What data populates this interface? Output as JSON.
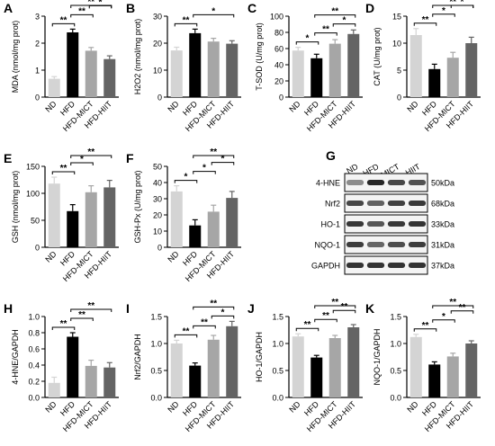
{
  "colors": {
    "ND": "#d4d4d4",
    "HFD": "#000000",
    "HFD-MICT": "#a6a6a6",
    "HFD-HIIT": "#646464",
    "ink": "#000000"
  },
  "blot": {
    "panel": "G",
    "groups": [
      "ND",
      "HFD",
      "HFD-MICT",
      "HFD-HIIT"
    ],
    "bands": [
      {
        "protein": "4-HNE",
        "size": "50kDa",
        "intensity": [
          0.45,
          0.85,
          0.72,
          0.68
        ]
      },
      {
        "protein": "Nrf2",
        "size": "68kDa",
        "intensity": [
          0.72,
          0.62,
          0.75,
          0.78
        ]
      },
      {
        "protein": "HO-1",
        "size": "33kDa",
        "intensity": [
          0.78,
          0.66,
          0.78,
          0.8
        ]
      },
      {
        "protein": "NQO-1",
        "size": "31kDa",
        "intensity": [
          0.76,
          0.6,
          0.7,
          0.76
        ]
      },
      {
        "protein": "GAPDH",
        "size": "37kDa",
        "intensity": [
          0.8,
          0.8,
          0.8,
          0.8
        ]
      }
    ]
  },
  "chart_data": [
    {
      "panel": "A",
      "type": "bar",
      "categories": [
        "ND",
        "HFD",
        "HFD-MICT",
        "HFD-HIIT"
      ],
      "values": [
        0.68,
        2.4,
        1.72,
        1.41
      ],
      "errors": [
        0.08,
        0.12,
        0.12,
        0.12
      ],
      "ylabel": "MDA (nmol/mg prot)",
      "ylim": [
        0,
        3
      ],
      "yticks": [
        "0",
        "1",
        "2",
        "3"
      ],
      "ytick_values": [
        0,
        1,
        2,
        3
      ],
      "significance": [
        {
          "from": "ND",
          "to": "HFD",
          "label": "**"
        },
        {
          "from": "HFD",
          "to": "HFD-MICT",
          "label": "**"
        },
        {
          "from": "HFD",
          "to": "HFD-HIIT",
          "label": "**"
        },
        {
          "from": "HFD-MICT",
          "to": "HFD-HIIT",
          "label": "*"
        }
      ]
    },
    {
      "panel": "B",
      "type": "bar",
      "categories": [
        "ND",
        "HFD",
        "HFD-MICT",
        "HFD-HIIT"
      ],
      "values": [
        17.3,
        23.7,
        20.6,
        19.8
      ],
      "errors": [
        1.2,
        1.5,
        1.2,
        1.1
      ],
      "ylabel": "H2O2 (nmol/mg prot)",
      "ylim": [
        0,
        30
      ],
      "yticks": [
        "0",
        "10",
        "20",
        "30"
      ],
      "ytick_values": [
        0,
        10,
        20,
        30
      ],
      "significance": [
        {
          "from": "ND",
          "to": "HFD",
          "label": "**"
        },
        {
          "from": "HFD",
          "to": "HFD-HIIT",
          "label": "*"
        }
      ]
    },
    {
      "panel": "C",
      "type": "bar",
      "categories": [
        "ND",
        "HFD",
        "HFD-MICT",
        "HFD-HIIT"
      ],
      "values": [
        57.5,
        48,
        66,
        78
      ],
      "errors": [
        4,
        5,
        5,
        5
      ],
      "ylabel": "T-SOD (U/mg prot)",
      "ylim": [
        0,
        100
      ],
      "yticks": [
        "0",
        "20",
        "40",
        "60",
        "80",
        "100"
      ],
      "ytick_values": [
        0,
        20,
        40,
        60,
        80,
        100
      ],
      "significance": [
        {
          "from": "ND",
          "to": "HFD",
          "label": "*"
        },
        {
          "from": "HFD",
          "to": "HFD-MICT",
          "label": "**"
        },
        {
          "from": "HFD",
          "to": "HFD-HIIT",
          "label": "**"
        },
        {
          "from": "HFD-MICT",
          "to": "HFD-HIIT",
          "label": "*"
        }
      ]
    },
    {
      "panel": "D",
      "type": "bar",
      "categories": [
        "ND",
        "HFD",
        "HFD-MICT",
        "HFD-HIIT"
      ],
      "values": [
        11.5,
        5.2,
        7.3,
        10.0
      ],
      "errors": [
        1.2,
        0.9,
        1.0,
        1.1
      ],
      "ylabel": "CAT (U/mg prot)",
      "ylim": [
        0,
        15
      ],
      "yticks": [
        "0",
        "5",
        "10",
        "15"
      ],
      "ytick_values": [
        0,
        5,
        10,
        15
      ],
      "significance": [
        {
          "from": "ND",
          "to": "HFD",
          "label": "**"
        },
        {
          "from": "HFD",
          "to": "HFD-MICT",
          "label": "*"
        },
        {
          "from": "HFD",
          "to": "HFD-HIIT",
          "label": "**"
        },
        {
          "from": "HFD-MICT",
          "to": "HFD-HIIT",
          "label": "*"
        }
      ]
    },
    {
      "panel": "E",
      "type": "bar",
      "categories": [
        "ND",
        "HFD",
        "HFD-MICT",
        "HFD-HIIT"
      ],
      "values": [
        118,
        67,
        102,
        111
      ],
      "errors": [
        12,
        12,
        12,
        13
      ],
      "ylabel": "GSH (nmol/mg prot)",
      "ylim": [
        0,
        150
      ],
      "yticks": [
        "0",
        "50",
        "100",
        "150"
      ],
      "ytick_values": [
        0,
        50,
        100,
        150
      ],
      "significance": [
        {
          "from": "ND",
          "to": "HFD",
          "label": "**"
        },
        {
          "from": "HFD",
          "to": "HFD-MICT",
          "label": "*"
        },
        {
          "from": "HFD",
          "to": "HFD-HIIT",
          "label": "**"
        }
      ]
    },
    {
      "panel": "F",
      "type": "bar",
      "categories": [
        "ND",
        "HFD",
        "HFD-MICT",
        "HFD-HIIT"
      ],
      "values": [
        34.5,
        13.5,
        22,
        30.5
      ],
      "errors": [
        3.5,
        3.5,
        4,
        4
      ],
      "ylabel": "GSH-Px (U/mg prot)",
      "ylim": [
        0,
        50
      ],
      "yticks": [
        "0",
        "10",
        "20",
        "30",
        "40",
        "50"
      ],
      "ytick_values": [
        0,
        10,
        20,
        30,
        40,
        50
      ],
      "significance": [
        {
          "from": "ND",
          "to": "HFD",
          "label": "*"
        },
        {
          "from": "HFD",
          "to": "HFD-MICT",
          "label": "*"
        },
        {
          "from": "HFD",
          "to": "HFD-HIIT",
          "label": "**"
        },
        {
          "from": "HFD-MICT",
          "to": "HFD-HIIT",
          "label": "*"
        }
      ]
    },
    {
      "panel": "H",
      "type": "bar",
      "categories": [
        "ND",
        "HFD",
        "HFD-MICT",
        "HFD-HIIT"
      ],
      "values": [
        0.18,
        0.75,
        0.39,
        0.37
      ],
      "errors": [
        0.07,
        0.05,
        0.07,
        0.06
      ],
      "ylabel": "4-HNE/GAPDH",
      "ylim": [
        0,
        1.0
      ],
      "yticks": [
        "0.0",
        "0.2",
        "0.4",
        "0.6",
        "0.8",
        "1.0"
      ],
      "ytick_values": [
        0,
        0.2,
        0.4,
        0.6,
        0.8,
        1.0
      ],
      "significance": [
        {
          "from": "ND",
          "to": "HFD",
          "label": "**"
        },
        {
          "from": "HFD",
          "to": "HFD-MICT",
          "label": "**"
        },
        {
          "from": "HFD",
          "to": "HFD-HIIT",
          "label": "**"
        }
      ]
    },
    {
      "panel": "I",
      "type": "bar",
      "categories": [
        "ND",
        "HFD",
        "HFD-MICT",
        "HFD-HIIT"
      ],
      "values": [
        1.0,
        0.59,
        1.07,
        1.32
      ],
      "errors": [
        0.06,
        0.05,
        0.08,
        0.09
      ],
      "ylabel": "Nrf2/GAPDH",
      "ylim": [
        0,
        1.5
      ],
      "yticks": [
        "0.0",
        "0.5",
        "1.0",
        "1.5"
      ],
      "ytick_values": [
        0,
        0.5,
        1.0,
        1.5
      ],
      "significance": [
        {
          "from": "ND",
          "to": "HFD",
          "label": "**"
        },
        {
          "from": "HFD",
          "to": "HFD-MICT",
          "label": "**"
        },
        {
          "from": "HFD",
          "to": "HFD-HIIT",
          "label": "**"
        },
        {
          "from": "HFD-MICT",
          "to": "HFD-HIIT",
          "label": "*"
        }
      ]
    },
    {
      "panel": "J",
      "type": "bar",
      "categories": [
        "ND",
        "HFD",
        "HFD-MICT",
        "HFD-HIIT"
      ],
      "values": [
        1.13,
        0.74,
        1.1,
        1.3
      ],
      "errors": [
        0.05,
        0.04,
        0.05,
        0.05
      ],
      "ylabel": "HO-1/GAPDH",
      "ylim": [
        0,
        1.5
      ],
      "yticks": [
        "0.0",
        "0.5",
        "1.0",
        "1.5"
      ],
      "ytick_values": [
        0,
        0.5,
        1.0,
        1.5
      ],
      "significance": [
        {
          "from": "ND",
          "to": "HFD",
          "label": "**"
        },
        {
          "from": "HFD",
          "to": "HFD-MICT",
          "label": "**"
        },
        {
          "from": "HFD",
          "to": "HFD-HIIT",
          "label": "**"
        },
        {
          "from": "HFD-MICT",
          "to": "HFD-HIIT",
          "label": "**"
        }
      ]
    },
    {
      "panel": "K",
      "type": "bar",
      "categories": [
        "ND",
        "HFD",
        "HFD-MICT",
        "HFD-HIIT"
      ],
      "values": [
        1.12,
        0.61,
        0.76,
        1.0
      ],
      "errors": [
        0.05,
        0.05,
        0.06,
        0.05
      ],
      "ylabel": "NQO-1/GAPDH",
      "ylim": [
        0,
        1.5
      ],
      "yticks": [
        "0.0",
        "0.5",
        "1.0",
        "1.5"
      ],
      "ytick_values": [
        0,
        0.5,
        1.0,
        1.5
      ],
      "significance": [
        {
          "from": "ND",
          "to": "HFD",
          "label": "**"
        },
        {
          "from": "HFD",
          "to": "HFD-MICT",
          "label": "*"
        },
        {
          "from": "HFD",
          "to": "HFD-HIIT",
          "label": "**"
        },
        {
          "from": "HFD-MICT",
          "to": "HFD-HIIT",
          "label": "**"
        }
      ]
    }
  ]
}
